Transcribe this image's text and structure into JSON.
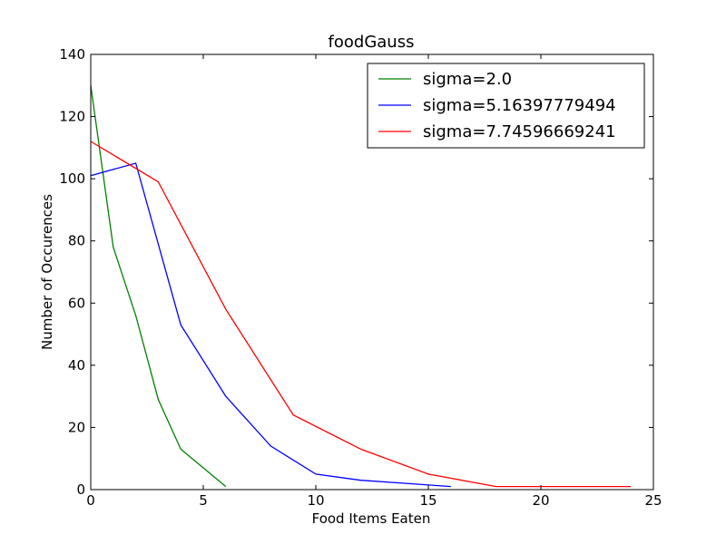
{
  "chart_data": {
    "type": "line",
    "title": "foodGauss",
    "xlabel": "Food Items Eaten",
    "ylabel": "Number of Occurences",
    "xlim": [
      0,
      25
    ],
    "ylim": [
      0,
      140
    ],
    "xticks": [
      0,
      5,
      10,
      15,
      20,
      25
    ],
    "yticks": [
      0,
      20,
      40,
      60,
      80,
      100,
      120,
      140
    ],
    "grid": false,
    "legend_position": "top-right",
    "series": [
      {
        "name": "sigma=2.0",
        "color": "#008000",
        "x": [
          0,
          1,
          2,
          3,
          4,
          5,
          6
        ],
        "y": [
          130,
          78,
          56,
          29,
          13,
          7,
          1
        ]
      },
      {
        "name": "sigma=5.16397779494",
        "color": "#0000ff",
        "x": [
          0,
          2,
          4,
          6,
          8,
          10,
          12,
          14,
          16
        ],
        "y": [
          101,
          105,
          53,
          30,
          14,
          5,
          3,
          2,
          1
        ]
      },
      {
        "name": "sigma=7.74596669241",
        "color": "#ff0000",
        "x": [
          0,
          3,
          6,
          9,
          12,
          15,
          18,
          21,
          24
        ],
        "y": [
          112,
          99,
          58,
          24,
          13,
          5,
          1,
          1,
          1
        ]
      }
    ]
  }
}
